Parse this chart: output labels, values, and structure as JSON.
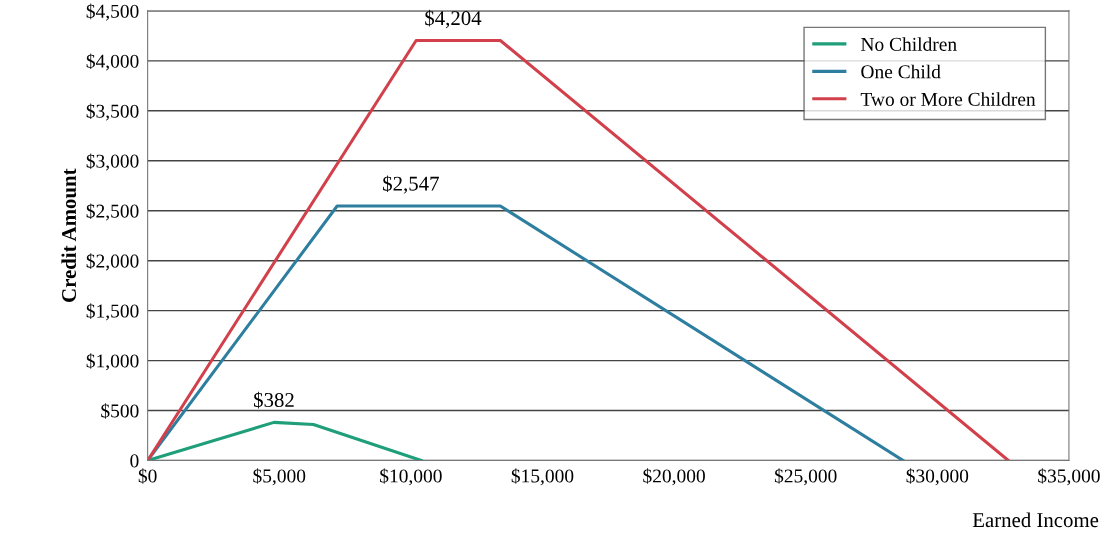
{
  "chart_data": {
    "type": "line",
    "xlabel": "Earned Income",
    "ylabel": "Credit Amount",
    "series": [
      {
        "name": "No Children",
        "color": "#1f9e7a",
        "x": [
          0,
          4800,
          6300,
          10400
        ],
        "values": [
          0,
          382,
          360,
          0
        ]
      },
      {
        "name": "One Child",
        "color": "#2e7ea0",
        "x": [
          0,
          7200,
          13400,
          28700
        ],
        "values": [
          0,
          2547,
          2547,
          0
        ]
      },
      {
        "name": "Two or More Children",
        "color": "#d2414b",
        "x": [
          0,
          10200,
          13400,
          32700
        ],
        "values": [
          0,
          4204,
          4204,
          0
        ]
      }
    ],
    "annotations": [
      {
        "text": "$382",
        "x": 4800,
        "y": 382
      },
      {
        "text": "$2,547",
        "x": 10000,
        "y": 2547
      },
      {
        "text": "$4,204",
        "x": 11600,
        "y": 4204
      }
    ],
    "xlim": [
      0,
      35000
    ],
    "ylim": [
      0,
      4500
    ],
    "xticks": [
      {
        "value": 0,
        "label": "$0"
      },
      {
        "value": 5000,
        "label": "$5,000"
      },
      {
        "value": 10000,
        "label": "$10,000"
      },
      {
        "value": 15000,
        "label": "$15,000"
      },
      {
        "value": 20000,
        "label": "$20,000"
      },
      {
        "value": 25000,
        "label": "$25,000"
      },
      {
        "value": 30000,
        "label": "$30,000"
      },
      {
        "value": 35000,
        "label": "$35,000"
      }
    ],
    "yticks": [
      0,
      {
        "value": 500,
        "label": "$500"
      },
      {
        "value": 1000,
        "label": "$1,000"
      },
      {
        "value": 1500,
        "label": "$1,500"
      },
      {
        "value": 2000,
        "label": "$2,000"
      },
      {
        "value": 2500,
        "label": "$2,500"
      },
      {
        "value": 3000,
        "label": "$3,000"
      },
      {
        "value": 3500,
        "label": "$3,500"
      },
      {
        "value": 4000,
        "label": "$4,000"
      },
      {
        "value": 4500,
        "label": "$4,500"
      }
    ],
    "grid": "y",
    "legend": "top right",
    "marker": "none",
    "line_style": "solid"
  }
}
